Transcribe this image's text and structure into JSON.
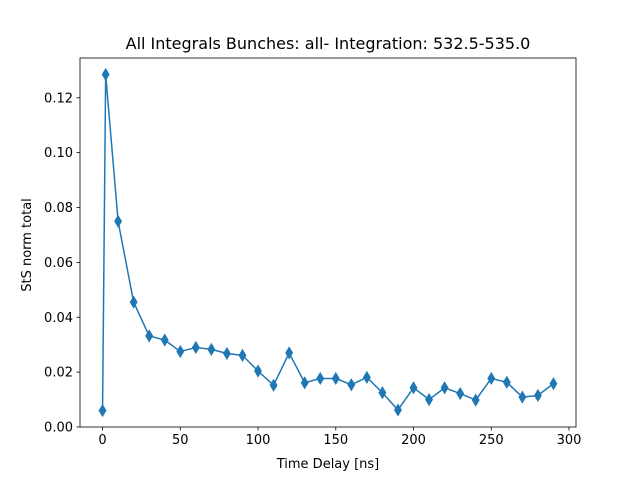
{
  "chart_data": {
    "type": "line",
    "title": "All Integrals Bunches: all- Integration: 532.5-535.0",
    "xlabel": "Time Delay [ns]",
    "ylabel": "StS norm total",
    "xlim": [
      -14.5,
      304.5
    ],
    "ylim": [
      0.0,
      0.1345
    ],
    "xticks": [
      0,
      50,
      100,
      150,
      200,
      250,
      300
    ],
    "xtick_labels": [
      "0",
      "50",
      "100",
      "150",
      "200",
      "250",
      "300"
    ],
    "yticks": [
      0.0,
      0.02,
      0.04,
      0.06,
      0.08,
      0.1,
      0.12
    ],
    "ytick_labels": [
      "0.00",
      "0.02",
      "0.04",
      "0.06",
      "0.08",
      "0.10",
      "0.12"
    ],
    "grid": false,
    "marker": "thin_diamond",
    "series": [
      {
        "color": "#1f77b4",
        "x": [
          0,
          2,
          10,
          20,
          30,
          40,
          50,
          60,
          70,
          80,
          90,
          100,
          110,
          120,
          130,
          140,
          150,
          160,
          170,
          180,
          190,
          200,
          210,
          220,
          230,
          240,
          250,
          260,
          270,
          280,
          290
        ],
        "y": [
          0.006,
          0.1285,
          0.075,
          0.0455,
          0.0332,
          0.0317,
          0.0275,
          0.029,
          0.0283,
          0.0268,
          0.0261,
          0.0204,
          0.0152,
          0.027,
          0.0161,
          0.0177,
          0.0177,
          0.0154,
          0.0181,
          0.0125,
          0.0062,
          0.0143,
          0.01,
          0.0143,
          0.0122,
          0.0098,
          0.0177,
          0.0163,
          0.0109,
          0.0115,
          0.0158
        ]
      }
    ]
  }
}
